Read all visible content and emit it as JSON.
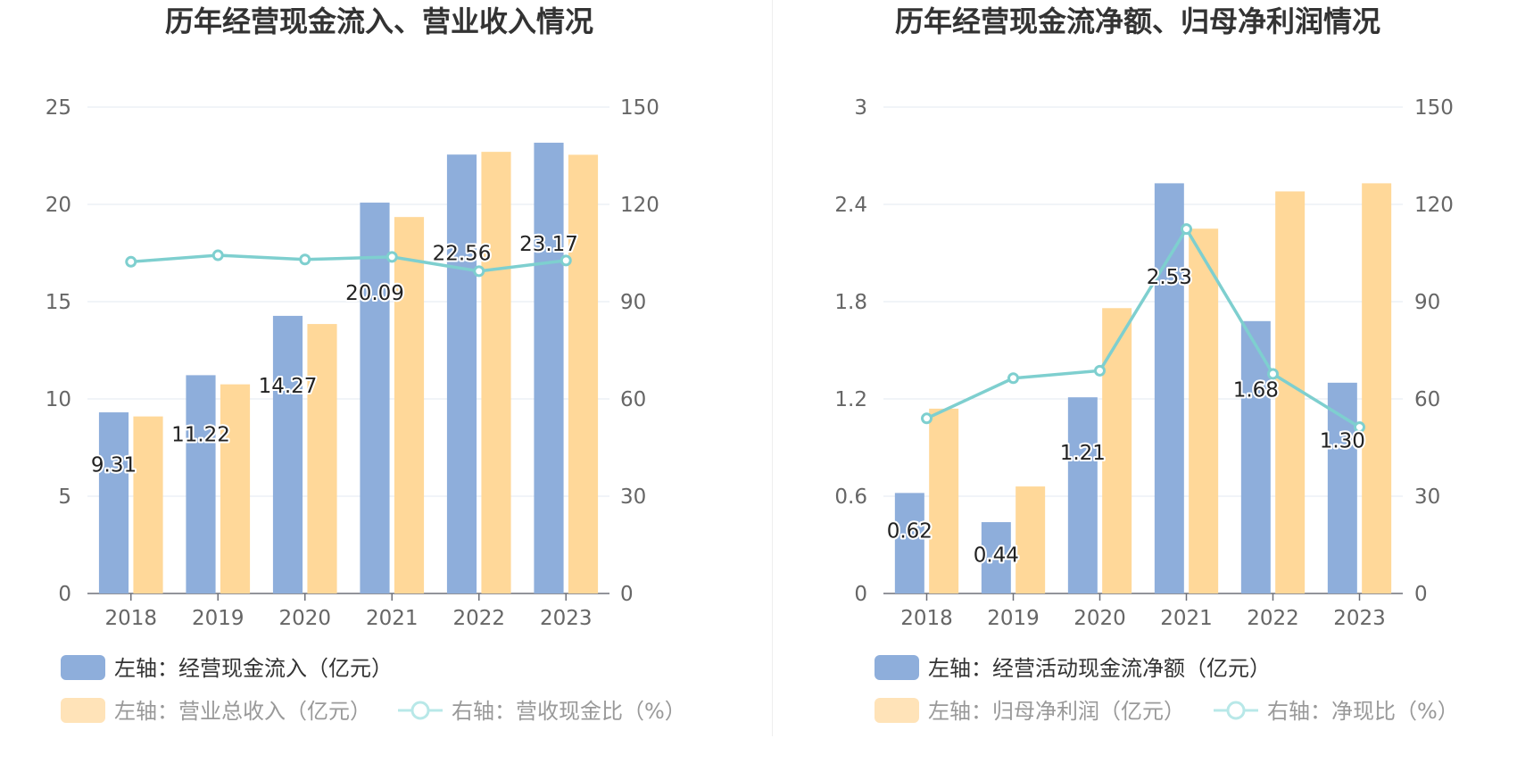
{
  "charts": {
    "left": {
      "title": "历年经营现金流入、营业收入情况",
      "legend": [
        {
          "label": "左轴：经营现金流入（亿元）",
          "kind": "bar",
          "color": "#8eaedb",
          "active": true
        },
        {
          "label": "左轴：营业总收入（亿元）",
          "kind": "bar",
          "color": "#ffe3b8",
          "active": false
        },
        {
          "label": "右轴：营收现金比（%）",
          "kind": "line",
          "color": "#b8e8e8",
          "active": false
        }
      ]
    },
    "right": {
      "title": "历年经营现金流净额、归母净利润情况",
      "legend": [
        {
          "label": "左轴：经营活动现金流净额（亿元）",
          "kind": "bar",
          "color": "#8eaedb",
          "active": true
        },
        {
          "label": "左轴：归母净利润（亿元）",
          "kind": "bar",
          "color": "#ffe3b8",
          "active": false
        },
        {
          "label": "右轴：净现比（%）",
          "kind": "line",
          "color": "#b8e8e8",
          "active": false
        }
      ]
    }
  },
  "chart_data": [
    {
      "type": "bar",
      "title": "历年经营现金流入、营业收入情况",
      "categories": [
        "2018",
        "2019",
        "2020",
        "2021",
        "2022",
        "2023"
      ],
      "y_left": {
        "ticks": [
          "0",
          "5",
          "10",
          "15",
          "20",
          "25"
        ],
        "range": [
          0,
          25
        ]
      },
      "y_right": {
        "ticks": [
          "0",
          "30",
          "60",
          "90",
          "120",
          "150"
        ],
        "range": [
          0,
          150
        ]
      },
      "grid": true,
      "legend_position": "bottom-left",
      "colors": {
        "bar1": "#8eaedb",
        "bar2": "#ffd899",
        "line": "#7ecfcf"
      },
      "series": [
        {
          "name": "左轴：经营现金流入（亿元）",
          "type": "bar",
          "axis": "left",
          "values": [
            9.31,
            11.22,
            14.27,
            20.09,
            22.56,
            23.17
          ],
          "labels": [
            "9.31",
            "11.22",
            "14.27",
            "20.09",
            "22.56",
            "23.17"
          ]
        },
        {
          "name": "左轴：营业总收入（亿元）",
          "type": "bar",
          "axis": "left",
          "values": [
            9.1,
            10.75,
            13.85,
            19.35,
            22.7,
            22.55
          ]
        },
        {
          "name": "右轴：营收现金比（%）",
          "type": "line",
          "axis": "right",
          "values": [
            102.3,
            104.3,
            103.0,
            103.8,
            99.4,
            102.7
          ]
        }
      ]
    },
    {
      "type": "bar",
      "title": "历年经营现金流净额、归母净利润情况",
      "categories": [
        "2018",
        "2019",
        "2020",
        "2021",
        "2022",
        "2023"
      ],
      "y_left": {
        "ticks": [
          "0",
          "0.6",
          "1.2",
          "1.8",
          "2.4",
          "3"
        ],
        "range": [
          0,
          3
        ]
      },
      "y_right": {
        "ticks": [
          "0",
          "30",
          "60",
          "90",
          "120",
          "150"
        ],
        "range": [
          0,
          150
        ]
      },
      "grid": true,
      "legend_position": "bottom-left",
      "colors": {
        "bar1": "#8eaedb",
        "bar2": "#ffd899",
        "line": "#7ecfcf"
      },
      "series": [
        {
          "name": "左轴：经营活动现金流净额（亿元）",
          "type": "bar",
          "axis": "left",
          "values": [
            0.62,
            0.44,
            1.21,
            2.53,
            1.68,
            1.3
          ],
          "labels": [
            "0.62",
            "0.44",
            "1.21",
            "2.53",
            "1.68",
            "1.30"
          ]
        },
        {
          "name": "左轴：归母净利润（亿元）",
          "type": "bar",
          "axis": "left",
          "values": [
            1.14,
            0.66,
            1.76,
            2.25,
            2.48,
            2.53
          ]
        },
        {
          "name": "右轴：净现比（%）",
          "type": "line",
          "axis": "right",
          "values": [
            54.0,
            66.4,
            68.7,
            112.4,
            67.7,
            51.3
          ]
        }
      ]
    }
  ]
}
